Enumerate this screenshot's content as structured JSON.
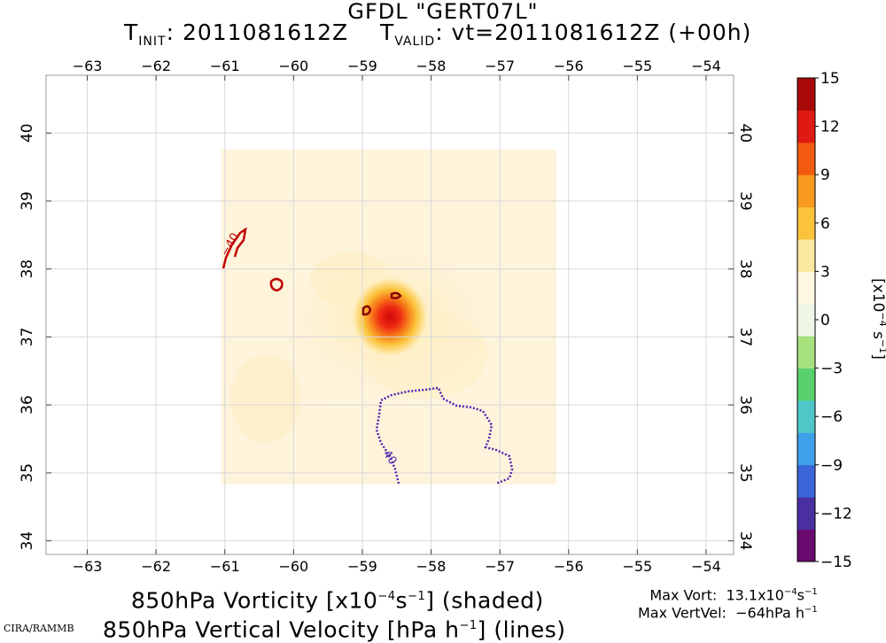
{
  "header": {
    "model_line": "GFDL \"GERT07L\"",
    "tinit_label": "T",
    "tinit_sub": "INIT",
    "tinit_value": ": 2011081612Z",
    "tvalid_label": "T",
    "tvalid_sub": "VALID",
    "tvalid_value": ": vt=2011081612Z (+00h)"
  },
  "axes": {
    "longitude_ticks": [
      "−63",
      "−62",
      "−61",
      "−60",
      "−59",
      "−58",
      "−57",
      "−56",
      "−55",
      "−54"
    ],
    "longitude_values": [
      -63,
      -62,
      -61,
      -60,
      -59,
      -58,
      -57,
      -56,
      -55,
      -54
    ],
    "latitude_ticks": [
      "34",
      "35",
      "36",
      "37",
      "38",
      "39",
      "40"
    ],
    "latitude_values": [
      34,
      35,
      36,
      37,
      38,
      39,
      40
    ],
    "lon_range": [
      -63.6,
      -53.6
    ],
    "lat_range": [
      33.8,
      40.85
    ]
  },
  "colorbar": {
    "ticks": [
      "15",
      "12",
      "9",
      "6",
      "3",
      "0",
      "−3",
      "−6",
      "−9",
      "−12",
      "−15"
    ],
    "tick_values": [
      15,
      12,
      9,
      6,
      3,
      0,
      -3,
      -6,
      -9,
      -12,
      -15
    ],
    "unit_label": "[x10",
    "unit_exp": "−4",
    "unit_s": " s",
    "unit_s_exp": "−1",
    "unit_close": "]",
    "colors": [
      "#6a0a6e",
      "#4a2fa0",
      "#3b64d9",
      "#3ea0e8",
      "#4fc7c9",
      "#5ad16f",
      "#a5e17c",
      "#eef6e6",
      "#fff8e0",
      "#fde8a0",
      "#fbc33a",
      "#f79a1e",
      "#f25a10",
      "#de1a12",
      "#a80808"
    ]
  },
  "contours": {
    "positive_label": "−40",
    "negative_label": "40",
    "positive_color": "#c00000",
    "negative_color": "#5020b0"
  },
  "caption": {
    "line1_a": "850hPa Vorticity [x10",
    "line1_exp": "−4",
    "line1_b": "s",
    "line1_exp2": "−1",
    "line1_c": "] (shaded)",
    "line2_a": "850hPa Vertical Velocity [hPa h",
    "line2_exp": "−1",
    "line2_c": "] (lines)"
  },
  "credit": "CIRA/RAMMB",
  "stats": {
    "max_vort_label": "Max Vort:",
    "max_vort_value": "13.1x10",
    "max_vort_exp": "−4",
    "max_vort_unit": "s",
    "max_vort_unit_exp": "−1",
    "max_vv_label": "Max VertVel:",
    "max_vv_value": "−64hPa h",
    "max_vv_exp": "−1"
  }
}
